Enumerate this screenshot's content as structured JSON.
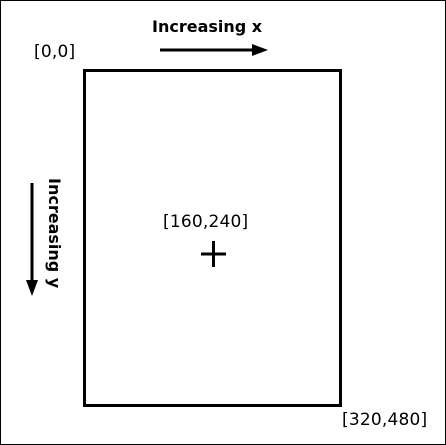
{
  "labels": {
    "increasing_x": "Increasing x",
    "increasing_y": "Increasing y",
    "origin": "[0,0]",
    "center": "[160,240]",
    "max": "[320,480]"
  },
  "icons": {
    "x_arrow": "arrow-right-icon",
    "y_arrow": "arrow-down-icon",
    "center_marker": "plus-icon"
  },
  "colors": {
    "ink": "#000000",
    "background": "#ffffff"
  }
}
